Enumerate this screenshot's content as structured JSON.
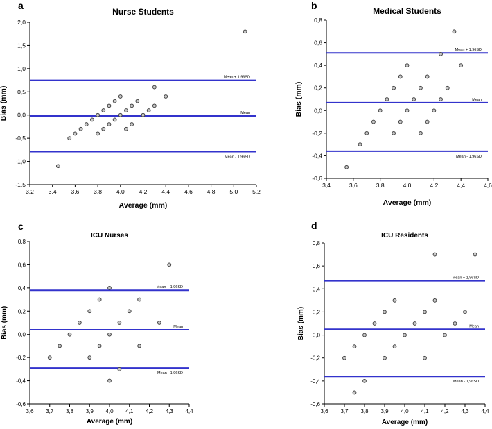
{
  "colors": {
    "reference_line_blue": "#3333cc",
    "point_fill": "#c9c9c9",
    "point_stroke": "#404040",
    "axis_black": "#000000",
    "background": "#ffffff"
  },
  "chart_data": [
    {
      "type": "scatter",
      "panel_label": "a",
      "title": "Nurse Students",
      "xlabel": "Average (mm)",
      "ylabel": "Bias (mm)",
      "xlim": [
        3.2,
        5.2
      ],
      "ylim": [
        -1.5,
        2.0
      ],
      "grid": false,
      "xticks": {
        "values": [
          3.2,
          3.4,
          3.6,
          3.8,
          4.0,
          4.2,
          4.4,
          4.6,
          4.8,
          5.0,
          5.2
        ],
        "labels": [
          "3,2",
          "3,4",
          "3,6",
          "3,8",
          "4,0",
          "4,2",
          "4,4",
          "4,6",
          "4,8",
          "5,0",
          "5,2"
        ]
      },
      "yticks": {
        "values": [
          2.0,
          1.5,
          1.0,
          0.5,
          0.0,
          -0.5,
          -1.0,
          -1.5
        ],
        "labels": [
          "2,0",
          "1,5",
          "1,0",
          "0,5",
          "0,0",
          "-0,5",
          "-1,0",
          "-1,5"
        ]
      },
      "ref_lines": [
        {
          "name": "upper_loa",
          "value": 0.75,
          "label": "Mean + 1,96SD",
          "label_side": "above"
        },
        {
          "name": "mean",
          "value": -0.02,
          "label": "Mean",
          "label_side": "above"
        },
        {
          "name": "lower_loa",
          "value": -0.79,
          "label": "Mean - 1,96SD",
          "label_side": "below"
        }
      ],
      "points": [
        [
          3.45,
          -1.1
        ],
        [
          3.55,
          -0.5
        ],
        [
          3.6,
          -0.4
        ],
        [
          3.65,
          -0.3
        ],
        [
          3.7,
          -0.2
        ],
        [
          3.75,
          -0.1
        ],
        [
          3.8,
          -0.4
        ],
        [
          3.8,
          0.0
        ],
        [
          3.85,
          -0.3
        ],
        [
          3.85,
          0.1
        ],
        [
          3.9,
          -0.2
        ],
        [
          3.9,
          0.2
        ],
        [
          3.95,
          -0.1
        ],
        [
          3.95,
          0.3
        ],
        [
          4.0,
          0.0
        ],
        [
          4.0,
          0.4
        ],
        [
          4.05,
          -0.3
        ],
        [
          4.05,
          0.1
        ],
        [
          4.1,
          -0.2
        ],
        [
          4.1,
          0.2
        ],
        [
          4.15,
          0.3
        ],
        [
          4.2,
          0.0
        ],
        [
          4.25,
          0.1
        ],
        [
          4.3,
          0.2
        ],
        [
          4.3,
          0.6
        ],
        [
          4.4,
          0.4
        ],
        [
          5.1,
          1.8
        ]
      ]
    },
    {
      "type": "scatter",
      "panel_label": "b",
      "title": "Medical Students",
      "xlabel": "Average (mm)",
      "ylabel": "Bias (mm)",
      "xlim": [
        3.4,
        4.6
      ],
      "ylim": [
        -0.6,
        0.8
      ],
      "grid": false,
      "xticks": {
        "values": [
          3.4,
          3.6,
          3.8,
          4.0,
          4.2,
          4.4,
          4.6
        ],
        "labels": [
          "3,4",
          "3,6",
          "3,8",
          "4,0",
          "4,2",
          "4,4",
          "4,6"
        ]
      },
      "yticks": {
        "values": [
          0.8,
          0.6,
          0.4,
          0.2,
          0.0,
          -0.2,
          -0.4,
          -0.6
        ],
        "labels": [
          "0,8",
          "0,6",
          "0,4",
          "0,2",
          "0,0",
          "-0,2",
          "-0,4",
          "-0,6"
        ]
      },
      "ref_lines": [
        {
          "name": "upper_loa",
          "value": 0.51,
          "label": "Mean + 1,96SD",
          "label_side": "above"
        },
        {
          "name": "mean",
          "value": 0.07,
          "label": "Mean",
          "label_side": "above"
        },
        {
          "name": "lower_loa",
          "value": -0.36,
          "label": "Mean - 1,96SD",
          "label_side": "below"
        }
      ],
      "points": [
        [
          3.55,
          -0.5
        ],
        [
          3.65,
          -0.3
        ],
        [
          3.7,
          -0.2
        ],
        [
          3.75,
          -0.1
        ],
        [
          3.8,
          0.0
        ],
        [
          3.85,
          0.1
        ],
        [
          3.9,
          -0.2
        ],
        [
          3.9,
          0.2
        ],
        [
          3.95,
          -0.1
        ],
        [
          3.95,
          0.3
        ],
        [
          4.0,
          0.0
        ],
        [
          4.0,
          0.4
        ],
        [
          4.05,
          0.1
        ],
        [
          4.1,
          -0.2
        ],
        [
          4.1,
          0.2
        ],
        [
          4.15,
          -0.1
        ],
        [
          4.15,
          0.3
        ],
        [
          4.2,
          0.0
        ],
        [
          4.25,
          0.1
        ],
        [
          4.25,
          0.5
        ],
        [
          4.3,
          0.2
        ],
        [
          4.35,
          0.7
        ],
        [
          4.4,
          0.4
        ]
      ]
    },
    {
      "type": "scatter",
      "panel_label": "c",
      "title": "ICU Nurses",
      "xlabel": "Average (mm)",
      "ylabel": "Bias (mm)",
      "xlim": [
        3.6,
        4.4
      ],
      "ylim": [
        -0.6,
        0.8
      ],
      "grid": false,
      "xticks": {
        "values": [
          3.6,
          3.7,
          3.8,
          3.9,
          4.0,
          4.1,
          4.2,
          4.3,
          4.4
        ],
        "labels": [
          "3,6",
          "3,7",
          "3,8",
          "3,9",
          "4,0",
          "4,1",
          "4,2",
          "4,3",
          "4,4"
        ]
      },
      "yticks": {
        "values": [
          0.8,
          0.6,
          0.4,
          0.2,
          0.0,
          -0.2,
          -0.4,
          -0.6
        ],
        "labels": [
          "0,8",
          "0,6",
          "0,4",
          "0,2",
          "0,0",
          "-0,2",
          "-0,4",
          "-0,6"
        ]
      },
      "ref_lines": [
        {
          "name": "upper_loa",
          "value": 0.38,
          "label": "Mean + 1,96SD",
          "label_side": "above"
        },
        {
          "name": "mean",
          "value": 0.04,
          "label": "Mean",
          "label_side": "above"
        },
        {
          "name": "lower_loa",
          "value": -0.29,
          "label": "Mean - 1,96SD",
          "label_side": "below"
        }
      ],
      "points": [
        [
          3.7,
          -0.2
        ],
        [
          3.75,
          -0.1
        ],
        [
          3.8,
          0.0
        ],
        [
          3.85,
          0.1
        ],
        [
          3.9,
          -0.2
        ],
        [
          3.9,
          0.2
        ],
        [
          3.95,
          -0.1
        ],
        [
          3.95,
          0.3
        ],
        [
          4.0,
          -0.4
        ],
        [
          4.0,
          0.0
        ],
        [
          4.0,
          0.4
        ],
        [
          4.05,
          -0.3
        ],
        [
          4.05,
          0.1
        ],
        [
          4.1,
          0.2
        ],
        [
          4.15,
          -0.1
        ],
        [
          4.15,
          0.3
        ],
        [
          4.25,
          0.1
        ],
        [
          4.3,
          0.6
        ]
      ]
    },
    {
      "type": "scatter",
      "panel_label": "d",
      "title": "ICU Residents",
      "xlabel": "Average (mm)",
      "ylabel": "Bias (mm)",
      "xlim": [
        3.6,
        4.4
      ],
      "ylim": [
        -0.6,
        0.8
      ],
      "grid": false,
      "xticks": {
        "values": [
          3.6,
          3.7,
          3.8,
          3.9,
          4.0,
          4.1,
          4.2,
          4.3,
          4.4
        ],
        "labels": [
          "3,6",
          "3,7",
          "3,8",
          "3,9",
          "4,0",
          "4,1",
          "4,2",
          "4,3",
          "4,4"
        ]
      },
      "yticks": {
        "values": [
          0.8,
          0.6,
          0.4,
          0.2,
          0.0,
          -0.2,
          -0.4,
          -0.6
        ],
        "labels": [
          "0,8",
          "0,6",
          "0,4",
          "0,2",
          "0,0",
          "-0,2",
          "-0,4",
          "-0,6"
        ]
      },
      "ref_lines": [
        {
          "name": "upper_loa",
          "value": 0.47,
          "label": "Mean + 1,96SD",
          "label_side": "above"
        },
        {
          "name": "mean",
          "value": 0.05,
          "label": "Mean",
          "label_side": "above"
        },
        {
          "name": "lower_loa",
          "value": -0.36,
          "label": "Mean - 1,96SD",
          "label_side": "below"
        }
      ],
      "points": [
        [
          3.7,
          -0.2
        ],
        [
          3.75,
          -0.5
        ],
        [
          3.75,
          -0.1
        ],
        [
          3.8,
          -0.4
        ],
        [
          3.8,
          0.0
        ],
        [
          3.85,
          0.1
        ],
        [
          3.9,
          -0.2
        ],
        [
          3.9,
          0.2
        ],
        [
          3.95,
          -0.1
        ],
        [
          3.95,
          0.3
        ],
        [
          4.0,
          0.0
        ],
        [
          4.05,
          0.1
        ],
        [
          4.1,
          -0.2
        ],
        [
          4.1,
          0.2
        ],
        [
          4.15,
          0.3
        ],
        [
          4.15,
          0.7
        ],
        [
          4.2,
          0.0
        ],
        [
          4.25,
          0.1
        ],
        [
          4.3,
          0.2
        ],
        [
          4.35,
          0.7
        ]
      ]
    }
  ]
}
